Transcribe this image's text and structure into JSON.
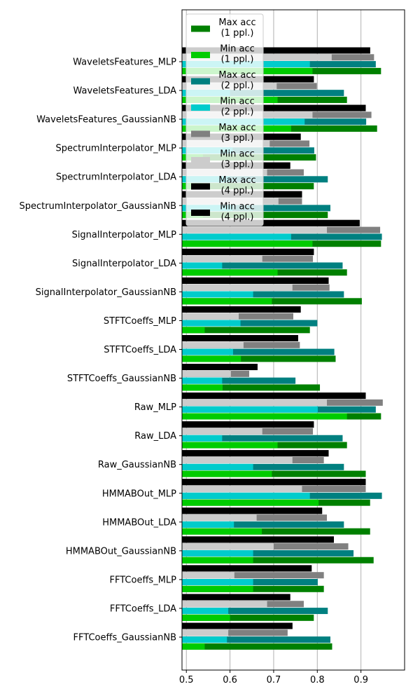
{
  "chart_data": {
    "type": "bar",
    "orientation": "horizontal",
    "title": "",
    "xlabel": "",
    "ylabel": "",
    "xlim": [
      0.49,
      1.0
    ],
    "xticks": [
      0.5,
      0.6,
      0.7,
      0.8,
      0.9
    ],
    "xtick_labels": [
      "0.5",
      "0.6",
      "0.7",
      "0.8",
      "0.9"
    ],
    "grid": "vertical lines at x ticks",
    "legend_position": "top-left",
    "categories": [
      "WaveletsFeatures_MLP",
      "WaveletsFeatures_LDA",
      "WaveletsFeatures_GaussianNB",
      "SpectrumInterpolator_MLP",
      "SpectrumInterpolator_LDA",
      "SpectrumInterpolator_GaussianNB",
      "SignalInterpolator_MLP",
      "SignalInterpolator_LDA",
      "SignalInterpolator_GaussianNB",
      "STFTCoeffs_MLP",
      "STFTCoeffs_LDA",
      "STFTCoeffs_GaussianNB",
      "Raw_MLP",
      "Raw_LDA",
      "Raw_GaussianNB",
      "HMMABOut_MLP",
      "HMMABOut_LDA",
      "HMMABOut_GaussianNB",
      "FFTCoeffs_MLP",
      "FFTCoeffs_LDA",
      "FFTCoeffs_GaussianNB"
    ],
    "groups": [
      {
        "name": "1 ppl.",
        "max_label": "Max acc\n(1 ppl.)",
        "max_color": "#008000",
        "max_values": [
          0.946,
          0.868,
          0.937,
          0.797,
          0.792,
          0.824,
          0.946,
          0.868,
          0.902,
          0.783,
          0.842,
          0.806,
          0.946,
          0.868,
          0.911,
          0.921,
          0.921,
          0.929,
          0.815,
          0.792,
          0.834
        ],
        "min_label": "Min acc\n(1 ppl.)",
        "min_color": "#00cc00",
        "min_values": [
          0.789,
          0.709,
          0.74,
          0.538,
          0.538,
          0.538,
          0.789,
          0.709,
          0.696,
          0.542,
          0.625,
          0.583,
          0.868,
          0.709,
          0.696,
          0.803,
          0.673,
          0.653,
          0.653,
          0.6,
          0.542
        ]
      },
      {
        "name": "2 ppl.",
        "max_label": "Max acc\n(2 ppl.)",
        "max_color": "#008080",
        "max_values": [
          0.934,
          0.861,
          0.912,
          0.793,
          0.824,
          0.83,
          0.948,
          0.858,
          0.861,
          0.8,
          0.839,
          0.75,
          0.934,
          0.858,
          0.861,
          0.948,
          0.861,
          0.883,
          0.801,
          0.824,
          0.83
        ],
        "min_label": "Min acc\n(2 ppl.)",
        "min_color": "#00cccc",
        "min_values": [
          0.783,
          0.6,
          0.771,
          0.606,
          0.6,
          0.606,
          0.74,
          0.582,
          0.653,
          0.624,
          0.607,
          0.582,
          0.801,
          0.582,
          0.653,
          0.783,
          0.609,
          0.653,
          0.653,
          0.596,
          0.593
        ]
      },
      {
        "name": "3 ppl.",
        "max_label": "Max acc\n(3 ppl.)",
        "max_color": "#808080",
        "max_values": [
          0.93,
          0.799,
          0.924,
          0.782,
          0.769,
          0.765,
          0.944,
          0.79,
          0.828,
          0.745,
          0.76,
          0.644,
          0.95,
          0.79,
          0.815,
          0.911,
          0.822,
          0.871,
          0.815,
          0.769,
          0.732
        ],
        "min_label": "Min acc\n(3 ppl.)",
        "min_color": "#cccccc",
        "min_values": [
          0.833,
          0.707,
          0.789,
          0.691,
          0.685,
          0.711,
          0.822,
          0.674,
          0.743,
          0.62,
          0.631,
          0.602,
          0.822,
          0.674,
          0.743,
          0.765,
          0.661,
          0.7,
          0.61,
          0.685,
          0.596
        ]
      },
      {
        "name": "4 ppl.",
        "max_label": "Max acc\n(4 ppl.)",
        "max_color": "#000000",
        "max_values": [
          0.921,
          0.792,
          0.911,
          0.762,
          0.738,
          0.765,
          0.897,
          0.792,
          0.826,
          0.762,
          0.756,
          0.663,
          0.911,
          0.792,
          0.826,
          0.911,
          0.811,
          0.838,
          0.787,
          0.738,
          0.743
        ],
        "min_label": "Min acc\n(4 ppl.)",
        "min_color": "#000000",
        "min_values": [
          0.921,
          0.792,
          0.911,
          0.762,
          0.738,
          0.765,
          0.897,
          0.792,
          0.826,
          0.762,
          0.756,
          0.663,
          0.911,
          0.792,
          0.826,
          0.911,
          0.811,
          0.838,
          0.787,
          0.738,
          0.743
        ]
      }
    ]
  }
}
